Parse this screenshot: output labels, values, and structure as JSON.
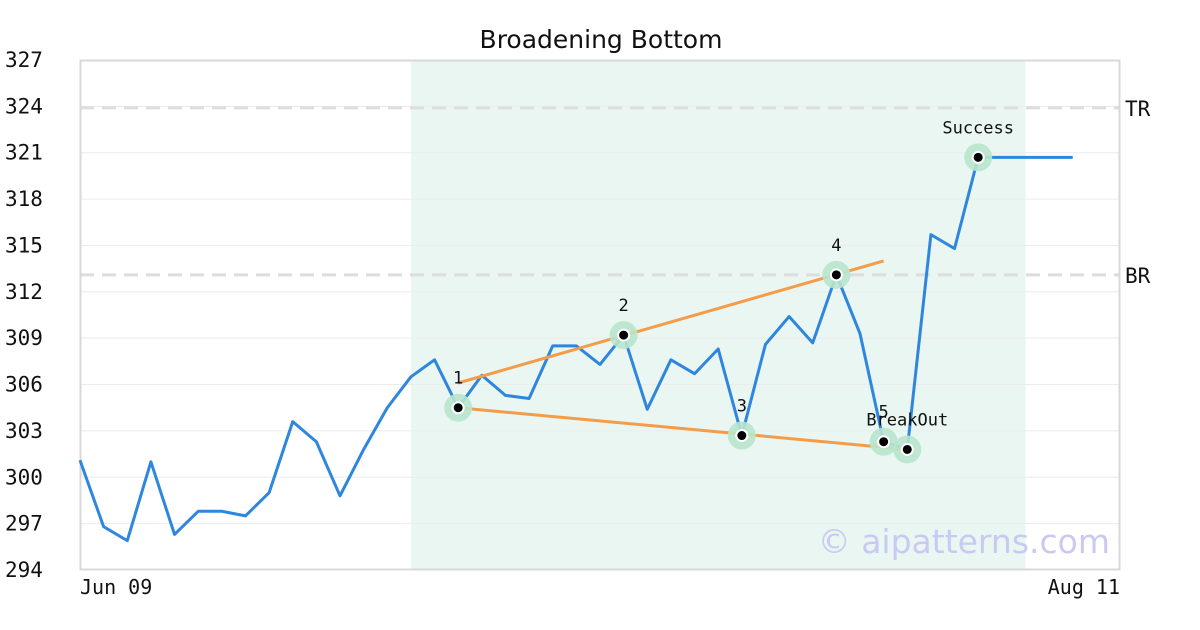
{
  "chart_data": {
    "type": "line",
    "title": "Broadening Bottom",
    "watermark": "© aipatterns.com",
    "ylim": [
      294,
      327
    ],
    "yticks": [
      294,
      297,
      300,
      303,
      306,
      309,
      312,
      315,
      318,
      321,
      324,
      327
    ],
    "xlim": [
      0,
      44
    ],
    "xtick_labels": [
      {
        "x": 0,
        "label": "Jun 09"
      },
      {
        "x": 44,
        "label": "Aug 11"
      }
    ],
    "grid": true,
    "colors": {
      "price": "#2e86de",
      "trendline": "#f39c4a",
      "shade": "#eaf6f1",
      "highlight": "#b9e6cd",
      "levels": "#dddddd"
    },
    "pattern_range": [
      14,
      40
    ],
    "series": [
      {
        "values": [
          301.1,
          296.8,
          295.9,
          301.0,
          296.3,
          297.8,
          297.8,
          297.5,
          299.0,
          303.6,
          302.3,
          298.8,
          301.8,
          304.5,
          306.5,
          307.6,
          304.5,
          306.6,
          305.3,
          305.1,
          308.5,
          308.5,
          307.3,
          309.2,
          304.4,
          307.6,
          306.7,
          308.3,
          302.7,
          308.6,
          310.4,
          308.7,
          313.1,
          309.3,
          302.3,
          301.8,
          315.7,
          314.8,
          320.7,
          320.7,
          320.7,
          320.7,
          320.7
        ]
      }
    ],
    "trendlines": [
      {
        "from": [
          16,
          306.1
        ],
        "to": [
          34,
          314.0
        ]
      },
      {
        "from": [
          16,
          304.5
        ],
        "to": [
          35,
          301.8
        ]
      }
    ],
    "levels": [
      {
        "label": "TR",
        "y": 323.9
      },
      {
        "label": "BR",
        "y": 313.1
      }
    ],
    "points": [
      {
        "label": "1",
        "x": 16,
        "y": 304.5
      },
      {
        "label": "2",
        "x": 23,
        "y": 309.2
      },
      {
        "label": "3",
        "x": 28,
        "y": 302.7
      },
      {
        "label": "4",
        "x": 32,
        "y": 313.1
      },
      {
        "label": "5",
        "x": 34,
        "y": 302.3
      },
      {
        "label": "BreakOut",
        "x": 35,
        "y": 301.8
      },
      {
        "label": "Success",
        "x": 38,
        "y": 320.7
      }
    ]
  }
}
